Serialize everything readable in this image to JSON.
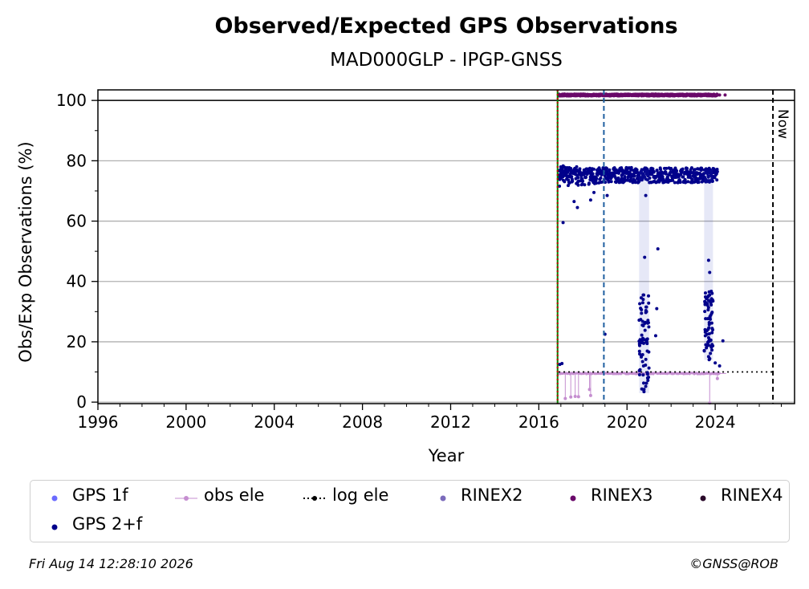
{
  "title": "Observed/Expected GPS Observations",
  "subtitle": "MAD000GLP - IPGP-GNSS",
  "footer": {
    "timestamp": "Fri Aug 14 12:28:10 2026",
    "credit": "©GNSS@ROB"
  },
  "colors": {
    "gps1f": "#6b6bff",
    "gps2f": "#00008b",
    "obs_ele": "#c58ed0",
    "log_ele": "#000000",
    "rinex2": "#7b6bbb",
    "rinex3": "#6a0a6a",
    "rinex4": "#2a0a2a",
    "start_line": "#008000",
    "marker_line": "#c00000",
    "event_line": "#1f5fa0",
    "grid": "#b0b0b0"
  },
  "chart_data": {
    "type": "scatter",
    "title": "Observed/Expected GPS Observations",
    "subtitle": "MAD000GLP - IPGP-GNSS",
    "xlabel": "Year",
    "ylabel": "Obs/Exp Observations (%)",
    "xlim": [
      1996,
      2027.6
    ],
    "ylim": [
      -0.5,
      103.5
    ],
    "xticks": [
      1996,
      2000,
      2004,
      2008,
      2012,
      2016,
      2020,
      2024
    ],
    "yticks": [
      0,
      20,
      40,
      60,
      80,
      100
    ],
    "grid": "horizontal",
    "legend_position": "bottom",
    "vertical_lines": [
      {
        "x": 2016.85,
        "style": "solid",
        "name": "start"
      },
      {
        "x": 2016.85,
        "style": "dotted",
        "name": "marker"
      },
      {
        "x": 2018.95,
        "style": "dashed",
        "name": "event"
      },
      {
        "x": 2026.62,
        "style": "dashed",
        "name": "now",
        "label": "Now"
      }
    ],
    "reference_line_y": 100,
    "series": [
      {
        "name": "GPS 1f",
        "marker": "dot"
      },
      {
        "name": "GPS 2+f",
        "marker": "dot",
        "segments": [
          {
            "x_start": 2016.9,
            "x_end": 2024.1,
            "y_mean": 75,
            "y_spread": 2.5
          }
        ],
        "outliers": [
          [
            2016.95,
            12.5
          ],
          [
            2017.05,
            12.8
          ],
          [
            2017.1,
            59.5
          ],
          [
            2017.6,
            66.5
          ],
          [
            2017.75,
            64.5
          ],
          [
            2018.35,
            67
          ],
          [
            2018.5,
            69.5
          ],
          [
            2019.0,
            22.5
          ],
          [
            2019.1,
            68.5
          ],
          [
            2020.85,
            68.5
          ],
          [
            2021.4,
            50.8
          ],
          [
            2021.35,
            31
          ],
          [
            2021.3,
            22
          ],
          [
            2023.9,
            33.5
          ],
          [
            2023.7,
            47
          ],
          [
            2023.75,
            43
          ],
          [
            2024.0,
            13
          ],
          [
            2024.2,
            12
          ],
          [
            2024.35,
            20.3
          ],
          [
            2020.8,
            48
          ],
          [
            2020.75,
            12
          ],
          [
            2023.6,
            18
          ]
        ],
        "dropout_clusters": [
          {
            "x_start": 2020.55,
            "x_end": 2021.0,
            "y_min": 3,
            "y_max": 36
          },
          {
            "x_start": 2023.5,
            "x_end": 2023.9,
            "y_min": 14,
            "y_max": 37
          }
        ]
      },
      {
        "name": "obs ele",
        "marker": "dot-line",
        "y": 9.5,
        "x_start": 2016.9,
        "x_end": 2024.5,
        "dips": [
          [
            2017.2,
            1.2
          ],
          [
            2017.45,
            1.7
          ],
          [
            2017.65,
            1.9
          ],
          [
            2017.8,
            1.8
          ],
          [
            2018.3,
            4.2
          ],
          [
            2018.35,
            2.2
          ],
          [
            2023.75,
            -0.3
          ],
          [
            2024.1,
            7.8
          ]
        ]
      },
      {
        "name": "log ele",
        "marker": "dot-dotted-line",
        "y": 10,
        "x_start": 2016.9,
        "x_end": 2026.62
      },
      {
        "name": "RINEX2",
        "marker": "dot"
      },
      {
        "name": "RINEX3",
        "marker": "dot",
        "y": 101.8,
        "x_start": 2016.9,
        "x_end": 2024.1,
        "extra_points": [
          [
            2024.2,
            101.8
          ],
          [
            2024.45,
            101.8
          ]
        ]
      },
      {
        "name": "RINEX4",
        "marker": "dot"
      }
    ]
  },
  "legend": [
    {
      "label": "GPS 1f",
      "key": "gps1f",
      "style": "dot"
    },
    {
      "label": "obs ele",
      "key": "obs_ele",
      "style": "line-dot"
    },
    {
      "label": "log ele",
      "key": "log_ele",
      "style": "dotted-dot"
    },
    {
      "label": "RINEX2",
      "key": "rinex2",
      "style": "dot"
    },
    {
      "label": "RINEX3",
      "key": "rinex3",
      "style": "dot"
    },
    {
      "label": "RINEX4",
      "key": "rinex4",
      "style": "dot"
    },
    {
      "label": "GPS 2+f",
      "key": "gps2f",
      "style": "dot"
    }
  ]
}
